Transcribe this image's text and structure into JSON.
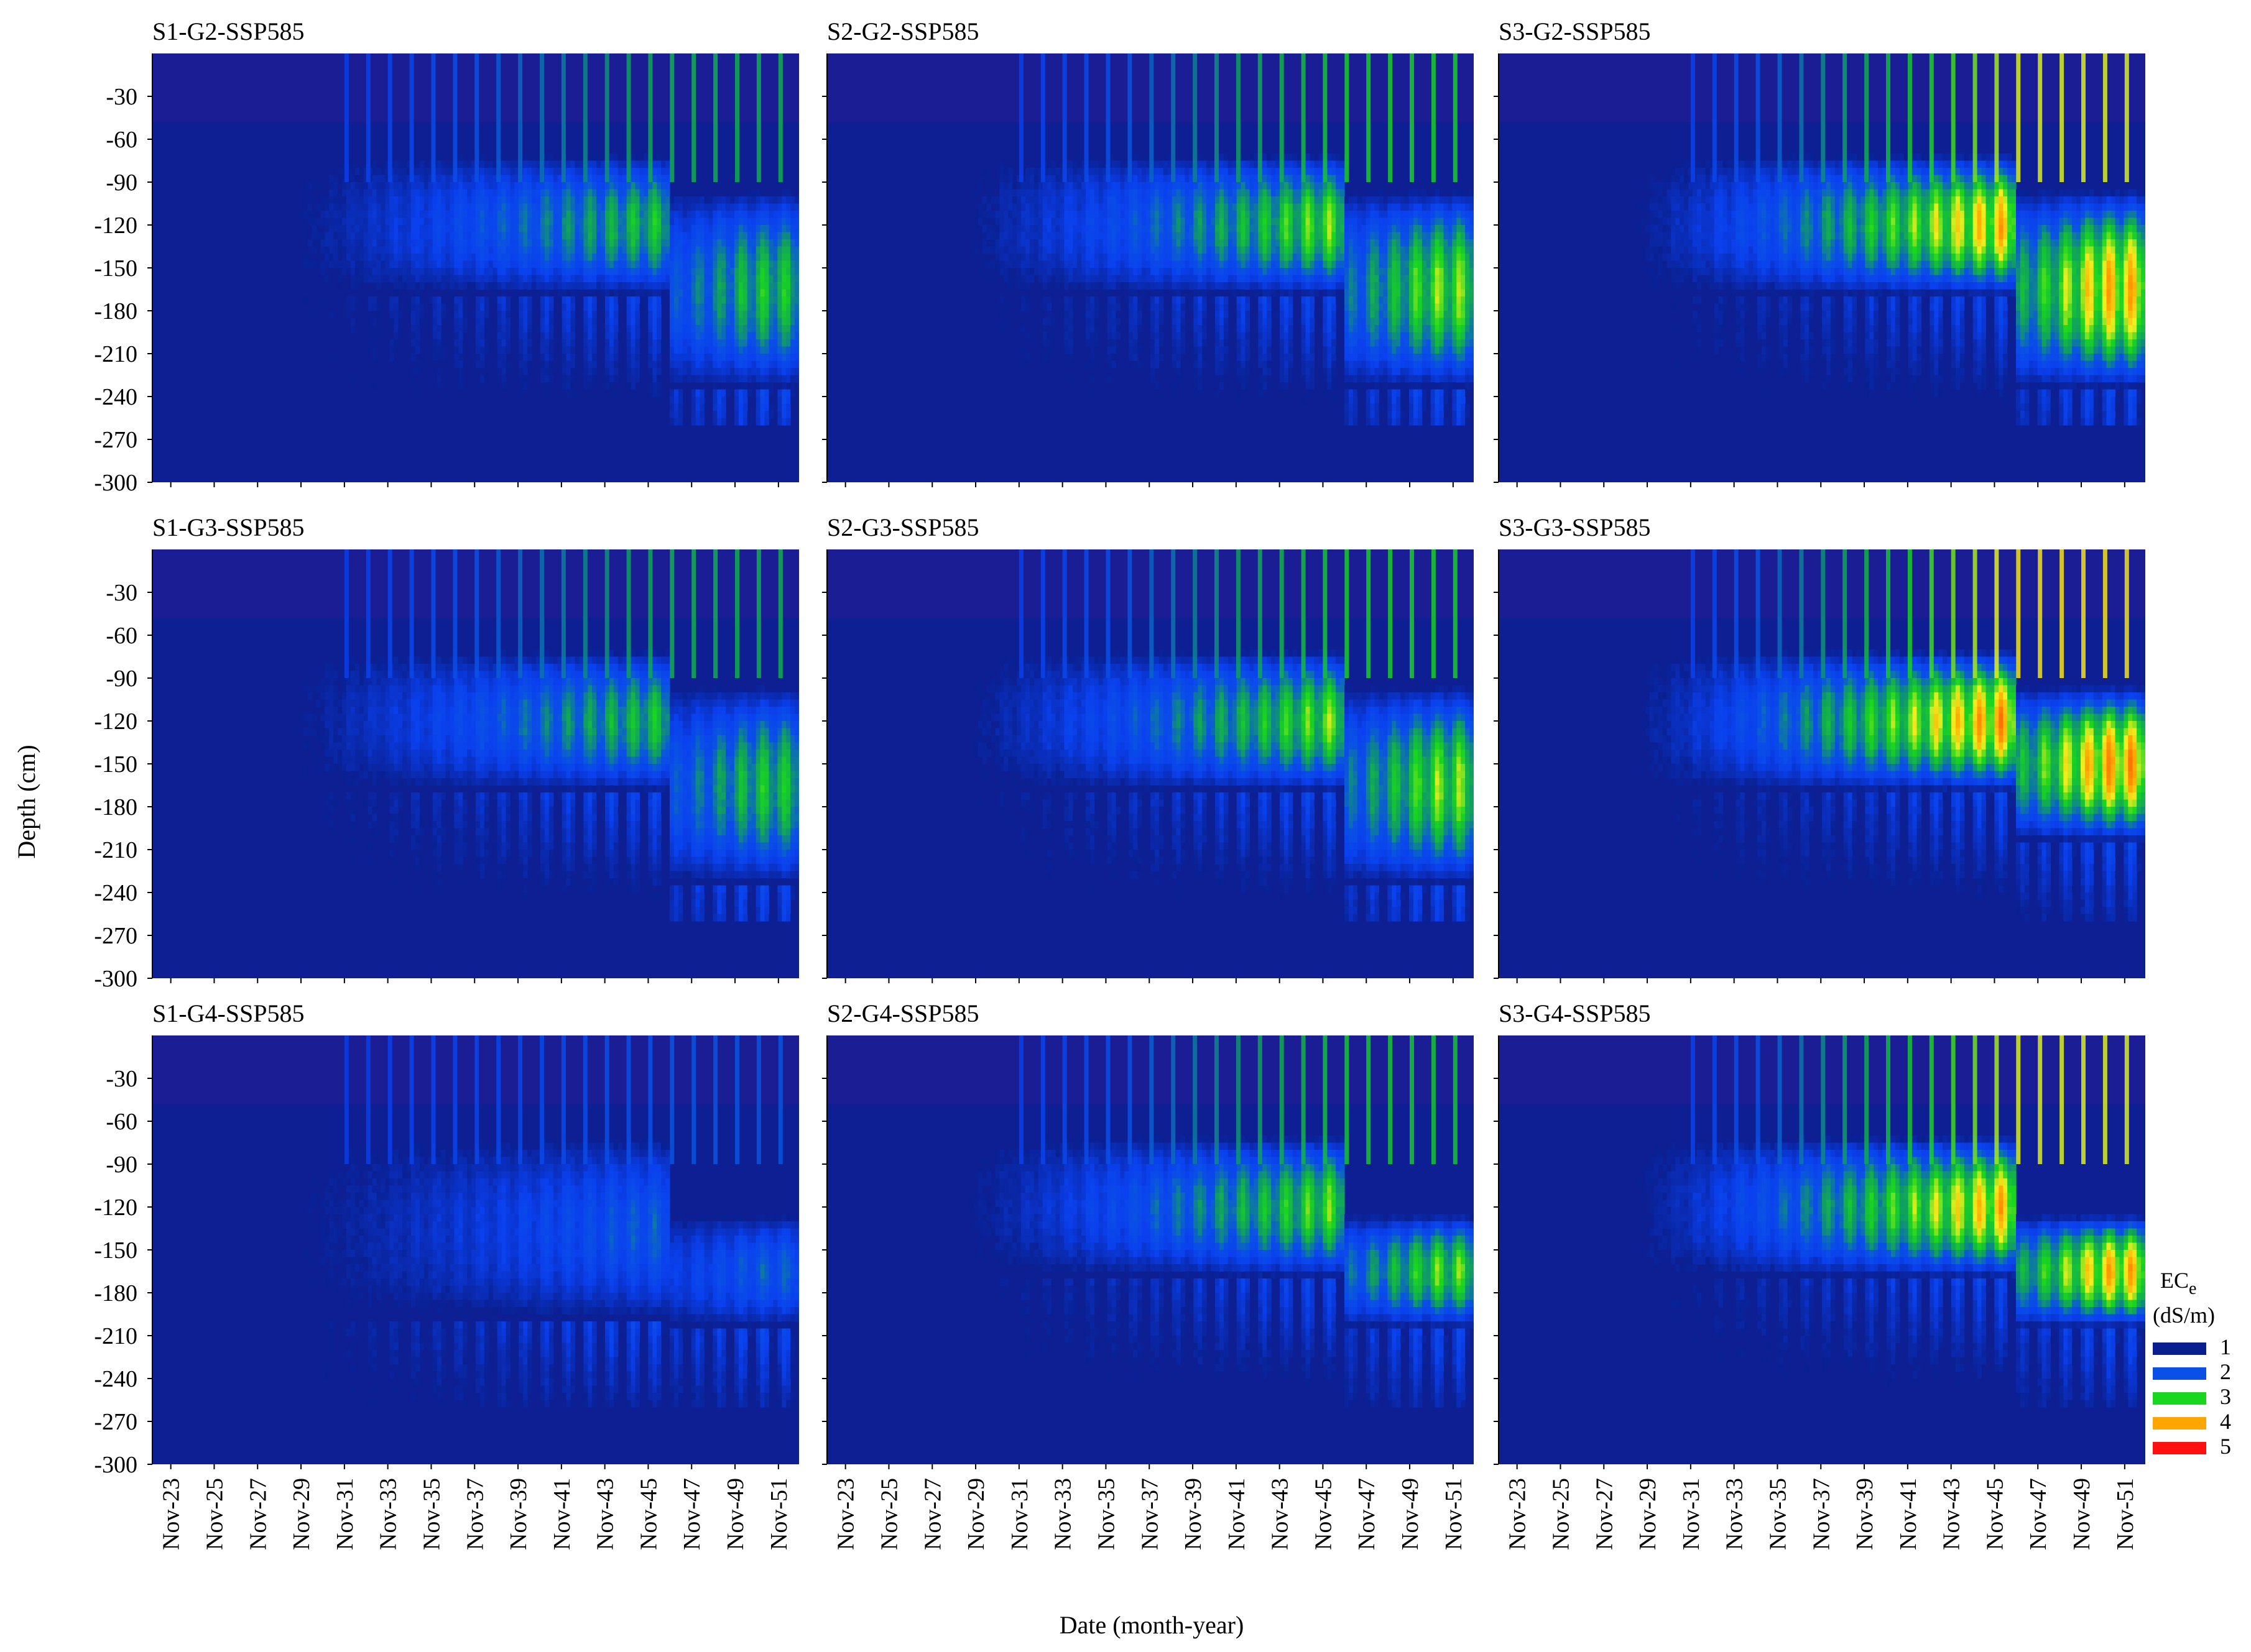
{
  "figure": {
    "ylabel": "Depth (cm)",
    "xlabel": "Date (month-year)"
  },
  "legend": {
    "title_main": "EC",
    "title_sub": "e",
    "unit": "(dS/m)",
    "items": [
      {
        "label": "1",
        "color": "#0a1f8f"
      },
      {
        "label": "2",
        "color": "#0a50e6"
      },
      {
        "label": "3",
        "color": "#19d61e"
      },
      {
        "label": "4",
        "color": "#ffa500"
      },
      {
        "label": "5",
        "color": "#ff1010"
      }
    ]
  },
  "colorscale": {
    "stops": [
      {
        "value": 0.0,
        "color": "#2f1a8c"
      },
      {
        "value": 0.5,
        "color": "#1a1f9e"
      },
      {
        "value": 1.0,
        "color": "#0a1f8f"
      },
      {
        "value": 1.6,
        "color": "#0a40ee"
      },
      {
        "value": 2.0,
        "color": "#0a50e6"
      },
      {
        "value": 2.5,
        "color": "#10a060"
      },
      {
        "value": 3.0,
        "color": "#19d61e"
      },
      {
        "value": 3.5,
        "color": "#f0f020"
      },
      {
        "value": 4.0,
        "color": "#ffa500"
      },
      {
        "value": 5.0,
        "color": "#ff1010"
      }
    ]
  },
  "chart_data": {
    "type": "heatmap",
    "variable": "ECe (dS/m)",
    "y_ticks": [
      "-30",
      "-60",
      "-90",
      "-120",
      "-150",
      "-180",
      "-210",
      "-240",
      "-270",
      "-300"
    ],
    "y_tick_values": [
      -30,
      -60,
      -90,
      -120,
      -150,
      -180,
      -210,
      -240,
      -270,
      -300
    ],
    "ylim": [
      -300,
      0
    ],
    "x_ticks": [
      "Nov-23",
      "Nov-25",
      "Nov-27",
      "Nov-29",
      "Nov-31",
      "Nov-33",
      "Nov-35",
      "Nov-37",
      "Nov-39",
      "Nov-41",
      "Nov-43",
      "Nov-45",
      "Nov-47",
      "Nov-49",
      "Nov-51"
    ],
    "x_tick_years": [
      2023,
      2025,
      2027,
      2029,
      2031,
      2033,
      2035,
      2037,
      2039,
      2041,
      2043,
      2045,
      2047,
      2049,
      2051
    ],
    "xlim": [
      "Nov-23",
      "Nov-52"
    ],
    "panels": [
      {
        "title": "S1-G2-SSP585",
        "row": 0,
        "col": 0,
        "peak_ece": 3.0,
        "band_depth_cm": [
          -90,
          -150
        ],
        "after_shift_band_cm": [
          -120,
          -210
        ]
      },
      {
        "title": "S2-G2-SSP585",
        "row": 0,
        "col": 1,
        "peak_ece": 3.4,
        "band_depth_cm": [
          -90,
          -150
        ],
        "after_shift_band_cm": [
          -120,
          -210
        ]
      },
      {
        "title": "S3-G2-SSP585",
        "row": 0,
        "col": 2,
        "peak_ece": 4.1,
        "band_depth_cm": [
          -90,
          -150
        ],
        "after_shift_band_cm": [
          -120,
          -210
        ]
      },
      {
        "title": "S1-G3-SSP585",
        "row": 1,
        "col": 0,
        "peak_ece": 3.0,
        "band_depth_cm": [
          -90,
          -150
        ],
        "after_shift_band_cm": [
          -120,
          -210
        ]
      },
      {
        "title": "S2-G3-SSP585",
        "row": 1,
        "col": 1,
        "peak_ece": 3.4,
        "band_depth_cm": [
          -90,
          -150
        ],
        "after_shift_band_cm": [
          -120,
          -210
        ]
      },
      {
        "title": "S3-G3-SSP585",
        "row": 1,
        "col": 2,
        "peak_ece": 4.3,
        "band_depth_cm": [
          -90,
          -150
        ],
        "after_shift_band_cm": [
          -120,
          -180
        ]
      },
      {
        "title": "S1-G4-SSP585",
        "row": 2,
        "col": 0,
        "peak_ece": 2.2,
        "band_depth_cm": [
          -90,
          -180
        ],
        "after_shift_band_cm": [
          -150,
          -180
        ]
      },
      {
        "title": "S2-G4-SSP585",
        "row": 2,
        "col": 1,
        "peak_ece": 3.3,
        "band_depth_cm": [
          -90,
          -150
        ],
        "after_shift_band_cm": [
          -150,
          -180
        ]
      },
      {
        "title": "S3-G4-SSP585",
        "row": 2,
        "col": 2,
        "peak_ece": 4.1,
        "band_depth_cm": [
          -90,
          -150
        ],
        "after_shift_band_cm": [
          -150,
          -180
        ]
      }
    ]
  }
}
